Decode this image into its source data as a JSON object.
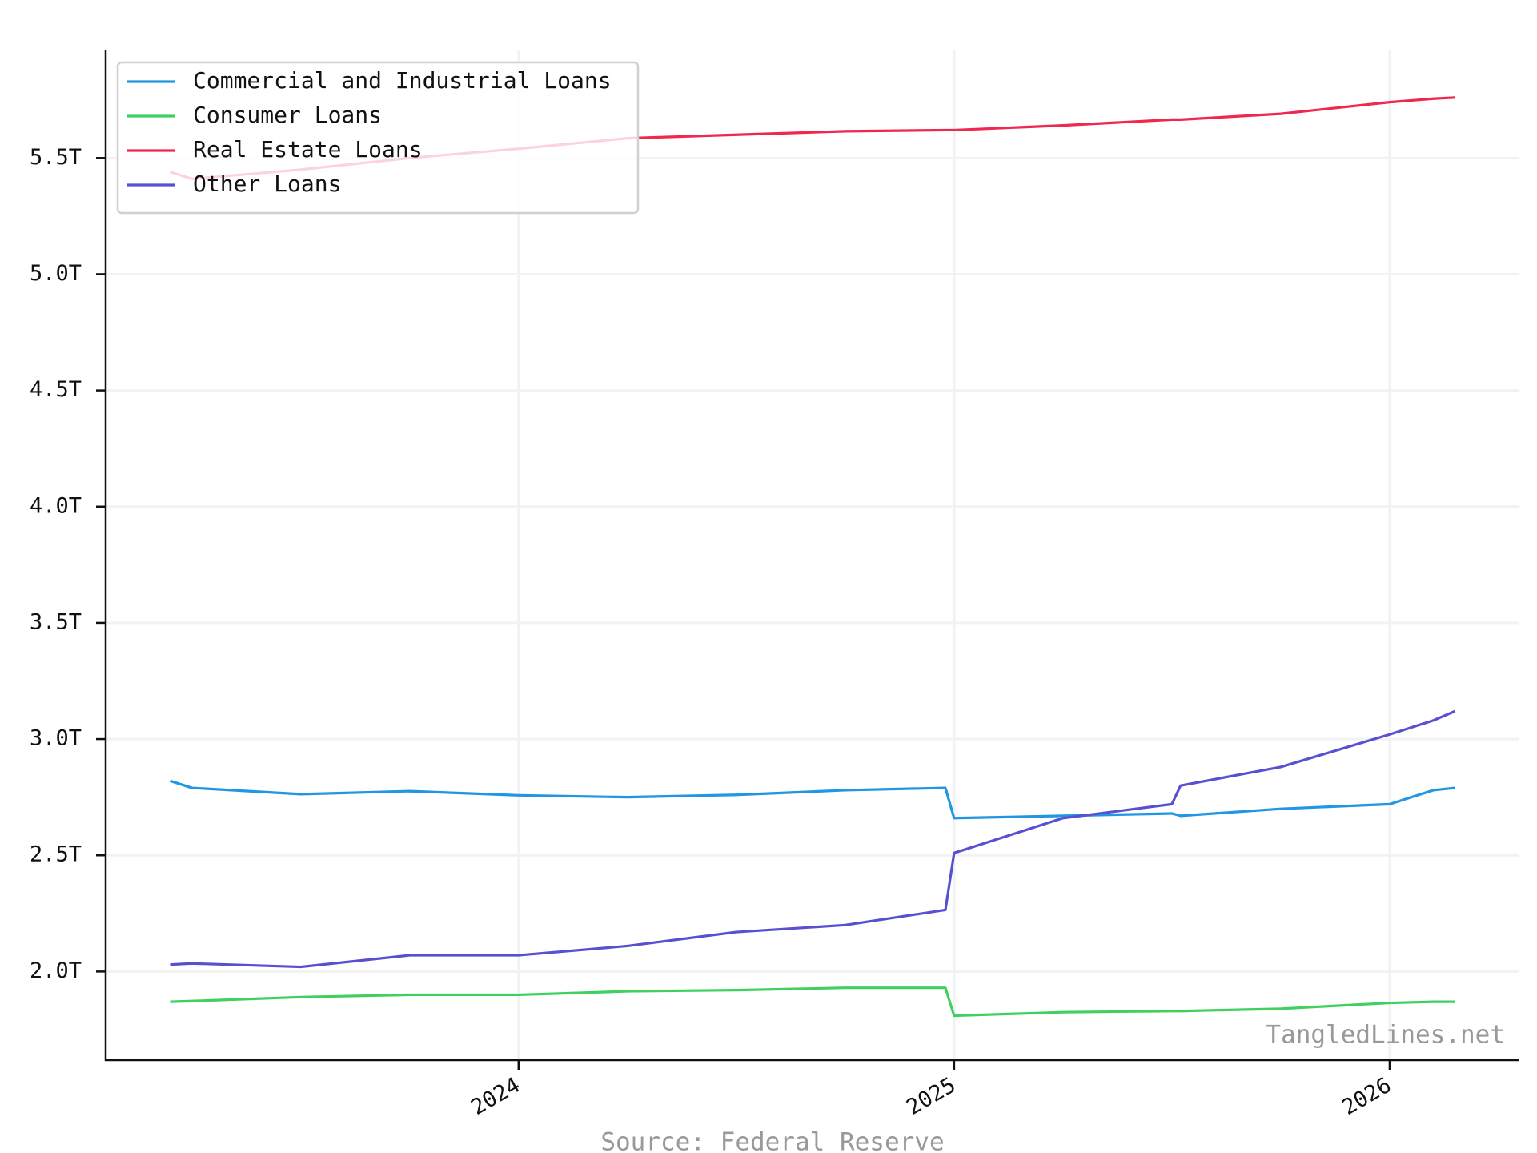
{
  "chart_data": {
    "type": "line",
    "x": [
      2023.2,
      2023.25,
      2023.5,
      2023.75,
      2024.0,
      2024.25,
      2024.5,
      2024.75,
      2024.98,
      2025.0,
      2025.25,
      2025.5,
      2025.52,
      2025.75,
      2026.0,
      2026.1,
      2026.15
    ],
    "series": [
      {
        "name": "Commercial and Industrial Loans",
        "color": "#2196e3",
        "values": [
          2.82,
          2.79,
          2.763,
          2.776,
          2.758,
          2.75,
          2.76,
          2.78,
          2.79,
          2.66,
          2.67,
          2.68,
          2.67,
          2.7,
          2.72,
          2.78,
          2.79
        ]
      },
      {
        "name": "Consumer Loans",
        "color": "#3fd060",
        "values": [
          1.87,
          1.873,
          1.89,
          1.9,
          1.9,
          1.915,
          1.92,
          1.93,
          1.93,
          1.81,
          1.825,
          1.83,
          1.83,
          1.84,
          1.865,
          1.87,
          1.87
        ]
      },
      {
        "name": "Real Estate Loans",
        "color": "#f0274f",
        "values": [
          5.44,
          5.41,
          5.45,
          5.5,
          5.54,
          5.585,
          5.6,
          5.615,
          5.62,
          5.62,
          5.64,
          5.665,
          5.665,
          5.69,
          5.74,
          5.755,
          5.76
        ]
      },
      {
        "name": "Other Loans",
        "color": "#5850d0",
        "values": [
          2.03,
          2.035,
          2.02,
          2.07,
          2.07,
          2.11,
          2.17,
          2.2,
          2.265,
          2.51,
          2.66,
          2.72,
          2.8,
          2.88,
          3.02,
          3.08,
          3.12
        ]
      }
    ],
    "xlim": [
      2023.052,
      2026.296
    ],
    "xticks": [
      2024,
      2025,
      2026
    ],
    "ylim": [
      1.619,
      5.966
    ],
    "yticks": [
      {
        "value": 2.0,
        "label": "2.0T"
      },
      {
        "value": 2.5,
        "label": "2.5T"
      },
      {
        "value": 3.0,
        "label": "3.0T"
      },
      {
        "value": 3.5,
        "label": "3.5T"
      },
      {
        "value": 4.0,
        "label": "4.0T"
      },
      {
        "value": 4.5,
        "label": "4.5T"
      },
      {
        "value": 5.0,
        "label": "5.0T"
      },
      {
        "value": 5.5,
        "label": "5.5T"
      }
    ],
    "grid": true,
    "legend": "upper-left",
    "watermark": "TangledLines.net",
    "source": "Source: Federal Reserve"
  }
}
